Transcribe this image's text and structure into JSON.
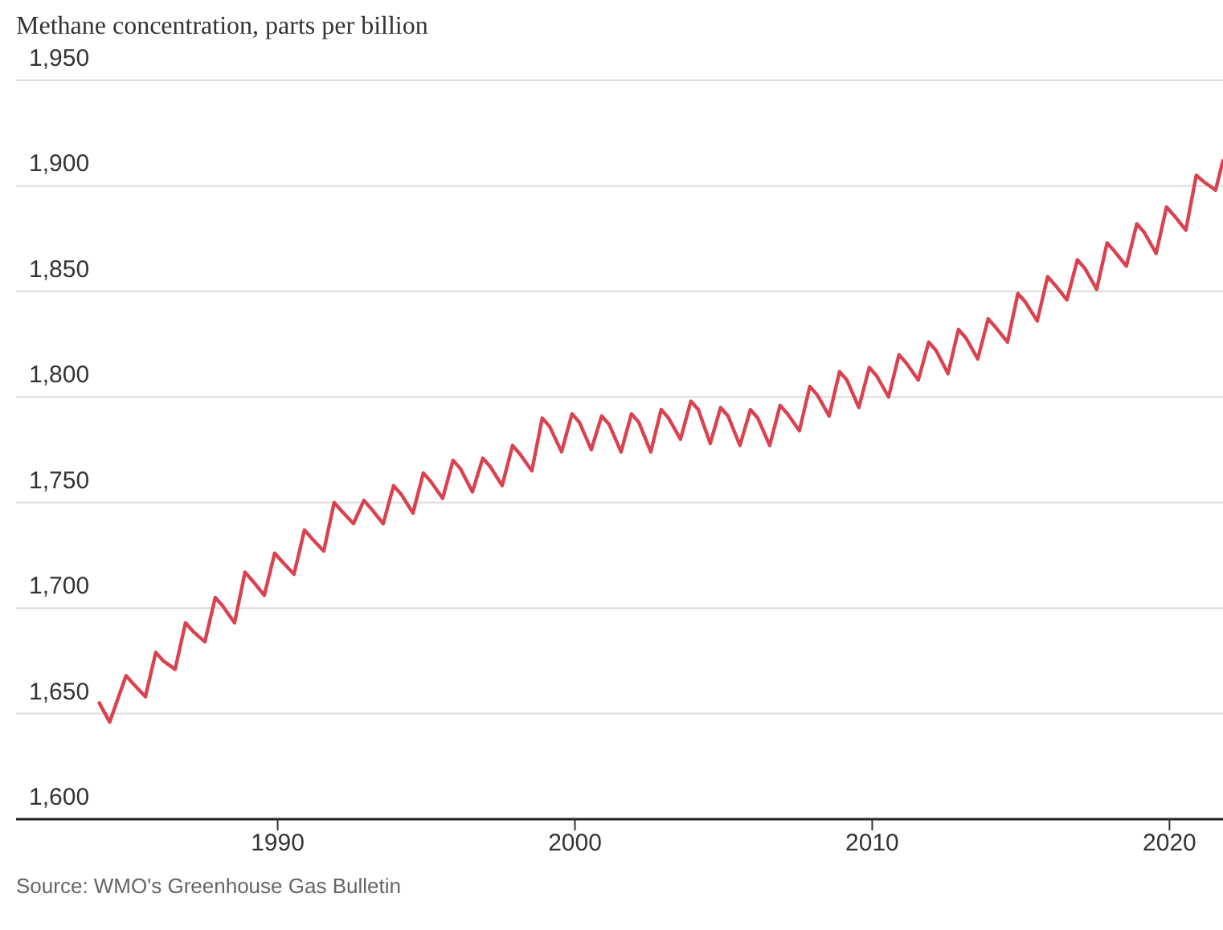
{
  "chart_data": {
    "type": "line",
    "title": "Methane concentration, parts per billion",
    "annotations": [
      "Source: WMO's Greenhouse Gas Bulletin"
    ],
    "x": [
      1984.0,
      1984.35,
      1984.9,
      1985.15,
      1985.55,
      1985.9,
      1986.15,
      1986.55,
      1986.9,
      1987.15,
      1987.55,
      1987.9,
      1988.15,
      1988.55,
      1988.9,
      1989.15,
      1989.55,
      1989.9,
      1990.15,
      1990.55,
      1990.9,
      1991.15,
      1991.55,
      1991.9,
      1992.15,
      1992.55,
      1992.9,
      1993.15,
      1993.55,
      1993.9,
      1994.15,
      1994.55,
      1994.9,
      1995.15,
      1995.55,
      1995.9,
      1996.15,
      1996.55,
      1996.9,
      1997.15,
      1997.55,
      1997.9,
      1998.15,
      1998.55,
      1998.9,
      1999.15,
      1999.55,
      1999.9,
      2000.15,
      2000.55,
      2000.9,
      2001.15,
      2001.55,
      2001.9,
      2002.15,
      2002.55,
      2002.9,
      2003.15,
      2003.55,
      2003.9,
      2004.15,
      2004.55,
      2004.9,
      2005.15,
      2005.55,
      2005.9,
      2006.15,
      2006.55,
      2006.9,
      2007.15,
      2007.55,
      2007.9,
      2008.15,
      2008.55,
      2008.9,
      2009.15,
      2009.55,
      2009.9,
      2010.15,
      2010.55,
      2010.9,
      2011.15,
      2011.55,
      2011.9,
      2012.15,
      2012.55,
      2012.9,
      2013.15,
      2013.55,
      2013.9,
      2014.15,
      2014.55,
      2014.9,
      2015.15,
      2015.55,
      2015.9,
      2016.15,
      2016.55,
      2016.9,
      2017.15,
      2017.55,
      2017.9,
      2018.15,
      2018.55,
      2018.9,
      2019.15,
      2019.55,
      2019.9,
      2020.15,
      2020.55,
      2020.9,
      2021.15,
      2021.55,
      2021.8
    ],
    "series": [
      {
        "color": "#d9424e",
        "values": [
          1655,
          1646,
          1668,
          1664,
          1658,
          1679,
          1675,
          1671,
          1693,
          1689,
          1684,
          1705,
          1701,
          1693,
          1717,
          1713,
          1706,
          1726,
          1722,
          1716,
          1737,
          1733,
          1727,
          1750,
          1746,
          1740,
          1751,
          1747,
          1740,
          1758,
          1754,
          1745,
          1764,
          1760,
          1752,
          1770,
          1766,
          1755,
          1771,
          1767,
          1758,
          1777,
          1773,
          1765,
          1790,
          1786,
          1774,
          1792,
          1788,
          1775,
          1791,
          1787,
          1774,
          1792,
          1788,
          1774,
          1794,
          1790,
          1780,
          1798,
          1794,
          1778,
          1795,
          1791,
          1777,
          1794,
          1790,
          1777,
          1796,
          1792,
          1784,
          1805,
          1801,
          1791,
          1812,
          1808,
          1795,
          1814,
          1810,
          1800,
          1820,
          1816,
          1808,
          1826,
          1822,
          1811,
          1832,
          1828,
          1818,
          1837,
          1833,
          1826,
          1849,
          1845,
          1836,
          1857,
          1853,
          1846,
          1865,
          1861,
          1851,
          1873,
          1869,
          1862,
          1882,
          1878,
          1868,
          1890,
          1886,
          1879,
          1905,
          1902,
          1898,
          1912
        ]
      }
    ],
    "xlim": [
      1981.2,
      2021.8
    ],
    "xticks": [
      1990,
      2000,
      2010,
      2020
    ],
    "ylim": [
      1600,
      1950
    ],
    "yticks": [
      {
        "value": 1600,
        "label": "1,600"
      },
      {
        "value": 1650,
        "label": "1,650"
      },
      {
        "value": 1700,
        "label": "1,700"
      },
      {
        "value": 1750,
        "label": "1,750"
      },
      {
        "value": 1800,
        "label": "1,800"
      },
      {
        "value": 1850,
        "label": "1,850"
      },
      {
        "value": 1900,
        "label": "1,900"
      },
      {
        "value": 1950,
        "label": "1,950"
      }
    ],
    "grid": "y",
    "legend": false,
    "marker": "none",
    "line_style": "solid"
  }
}
